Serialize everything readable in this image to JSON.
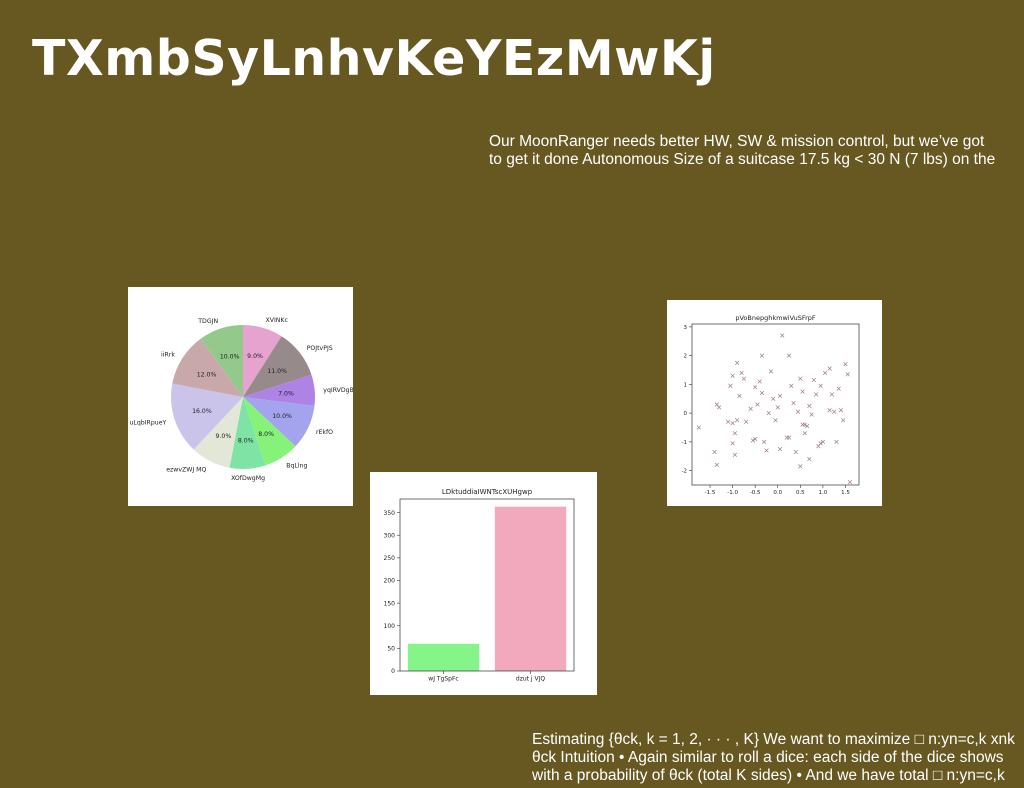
{
  "title": "TXmbSyLnhvKeYEzMwKj",
  "text_blocks": {
    "top": [
      "Our MoonRanger needs better HW, SW & mission control, but we’ve got",
      "to get it done Autonomous Size of a suitcase 17.5 kg < 30 N (7 lbs) on the"
    ],
    "bottom": [
      "Estimating {θck, k = 1, 2, · · · , K} We want to maximize □ n:yn=c,k xnk",
      "θck Intuition • Again similar to roll a dice: each side of the dice shows",
      "with a probability of θck (total K sides) • And we have total □ n:yn=c,k"
    ]
  },
  "chart_data": [
    {
      "type": "pie",
      "title": "",
      "start_angle_deg": 90,
      "direction": "clockwise",
      "slices": [
        {
          "label": "XVINKc",
          "value": 9.0,
          "pct_label": "9.0%",
          "color": "#e6a3d0"
        },
        {
          "label": "POJtvPJS",
          "value": 11.0,
          "pct_label": "11.0%",
          "color": "#978a8a"
        },
        {
          "label": "yqIRVDgB",
          "value": 7.0,
          "pct_label": "7.0%",
          "color": "#ad83e6"
        },
        {
          "label": "rEkfO",
          "value": 10.0,
          "pct_label": "10.0%",
          "color": "#a3a3ee"
        },
        {
          "label": "BqLlng",
          "value": 8.0,
          "pct_label": "8.0%",
          "color": "#86f27a"
        },
        {
          "label": "XOfDwgMg",
          "value": 8.0,
          "pct_label": "8.0%",
          "color": "#7fe3a5"
        },
        {
          "label": "ezwvZWJ MQ",
          "value": 9.0,
          "pct_label": "9.0%",
          "color": "#e3e7d7"
        },
        {
          "label": "uLqbIRpueY",
          "value": 16.0,
          "pct_label": "16.0%",
          "color": "#cbc4ea"
        },
        {
          "label": "iiRrk",
          "value": 12.0,
          "pct_label": "12.0%",
          "color": "#c8a8ab"
        },
        {
          "label": "TDGJN",
          "value": 10.0,
          "pct_label": "10.0%",
          "color": "#93c98b"
        }
      ]
    },
    {
      "type": "bar",
      "title": "LDktuddiaIWNTscXUHgwp",
      "categories": [
        "wJ TgSpFc",
        "dzut j VJQ"
      ],
      "values": [
        60,
        363
      ],
      "colors": [
        "#85f589",
        "#f2a8bd"
      ],
      "ylim": [
        0,
        380
      ],
      "yticks": [
        0,
        50,
        100,
        150,
        200,
        250,
        300,
        350
      ]
    },
    {
      "type": "scatter",
      "title": "pVoBnepghkmwiVuSFrpF",
      "marker": "x",
      "color": "#a07a92",
      "xlim": [
        -1.9,
        1.8
      ],
      "ylim": [
        -2.5,
        3.1
      ],
      "xticks": [
        -1.5,
        -1.0,
        -0.5,
        0.0,
        0.5,
        1.0,
        1.5
      ],
      "ytick_labels": [
        "-2",
        "-1",
        "0",
        "1",
        "2",
        "3"
      ],
      "yticks": [
        -2,
        -1,
        0,
        1,
        2,
        3
      ],
      "points": [
        [
          -1.75,
          -0.5
        ],
        [
          -1.4,
          -1.35
        ],
        [
          -1.35,
          -1.8
        ],
        [
          -1.35,
          0.3
        ],
        [
          -1.3,
          0.2
        ],
        [
          -1.1,
          -0.3
        ],
        [
          -1.05,
          0.95
        ],
        [
          -1.0,
          -0.35
        ],
        [
          -1.0,
          1.3
        ],
        [
          -1.0,
          -1.05
        ],
        [
          -0.95,
          -1.45
        ],
        [
          -0.95,
          -0.7
        ],
        [
          -0.9,
          1.75
        ],
        [
          -0.9,
          -0.25
        ],
        [
          -0.85,
          0.6
        ],
        [
          -0.8,
          1.4
        ],
        [
          -0.75,
          1.2
        ],
        [
          -0.7,
          -0.3
        ],
        [
          -0.6,
          0.15
        ],
        [
          -0.55,
          -0.95
        ],
        [
          -0.5,
          0.9
        ],
        [
          -0.5,
          -0.9
        ],
        [
          -0.45,
          0.3
        ],
        [
          -0.4,
          1.1
        ],
        [
          -0.35,
          2.0
        ],
        [
          -0.35,
          0.7
        ],
        [
          -0.3,
          -1.0
        ],
        [
          -0.25,
          -1.3
        ],
        [
          -0.2,
          0.0
        ],
        [
          -0.15,
          1.45
        ],
        [
          -0.1,
          0.5
        ],
        [
          -0.05,
          -0.25
        ],
        [
          0.0,
          0.2
        ],
        [
          0.05,
          -1.25
        ],
        [
          0.05,
          0.6
        ],
        [
          0.1,
          2.7
        ],
        [
          0.2,
          -0.85
        ],
        [
          0.25,
          2.0
        ],
        [
          0.25,
          -0.85
        ],
        [
          0.3,
          0.95
        ],
        [
          0.35,
          0.35
        ],
        [
          0.4,
          -1.35
        ],
        [
          0.45,
          0.05
        ],
        [
          0.5,
          1.2
        ],
        [
          0.5,
          -1.85
        ],
        [
          0.55,
          -0.4
        ],
        [
          0.55,
          0.75
        ],
        [
          0.6,
          -0.4
        ],
        [
          0.6,
          -0.7
        ],
        [
          0.65,
          -0.45
        ],
        [
          0.7,
          0.25
        ],
        [
          0.7,
          -1.6
        ],
        [
          0.75,
          -0.05
        ],
        [
          0.8,
          1.15
        ],
        [
          0.85,
          0.65
        ],
        [
          0.9,
          -1.15
        ],
        [
          0.95,
          0.95
        ],
        [
          0.95,
          -1.05
        ],
        [
          1.0,
          -1.0
        ],
        [
          1.05,
          1.4
        ],
        [
          1.15,
          0.1
        ],
        [
          1.15,
          1.55
        ],
        [
          1.2,
          0.65
        ],
        [
          1.25,
          0.05
        ],
        [
          1.3,
          -1.0
        ],
        [
          1.35,
          0.85
        ],
        [
          1.4,
          0.1
        ],
        [
          1.45,
          -0.25
        ],
        [
          1.5,
          1.7
        ],
        [
          1.55,
          1.35
        ],
        [
          1.6,
          -2.4
        ]
      ]
    }
  ]
}
